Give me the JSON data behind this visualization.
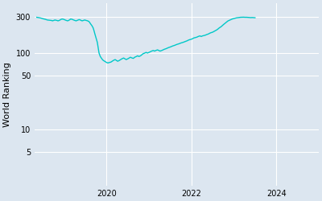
{
  "ylabel": "World Ranking",
  "background_color": "#dce6f0",
  "figure_background": "#dce6f0",
  "line_color": "#00c8c8",
  "line_width": 1.0,
  "yticks": [
    5,
    10,
    50,
    100,
    300
  ],
  "ytick_labels": [
    "5",
    "10",
    "50",
    "100",
    "300"
  ],
  "xticks": [
    2020,
    2022,
    2024
  ],
  "xlim_start": 2018.3,
  "xlim_end": 2025.0,
  "ylim_low": 1.8,
  "ylim_high": 450,
  "data": [
    [
      2018.35,
      295
    ],
    [
      2018.4,
      292
    ],
    [
      2018.45,
      288
    ],
    [
      2018.5,
      282
    ],
    [
      2018.55,
      278
    ],
    [
      2018.6,
      272
    ],
    [
      2018.65,
      270
    ],
    [
      2018.7,
      268
    ],
    [
      2018.72,
      265
    ],
    [
      2018.75,
      268
    ],
    [
      2018.78,
      272
    ],
    [
      2018.8,
      270
    ],
    [
      2018.83,
      268
    ],
    [
      2018.85,
      265
    ],
    [
      2018.88,
      268
    ],
    [
      2018.9,
      272
    ],
    [
      2018.93,
      278
    ],
    [
      2018.95,
      280
    ],
    [
      2018.98,
      278
    ],
    [
      2019.0,
      275
    ],
    [
      2019.02,
      272
    ],
    [
      2019.05,
      268
    ],
    [
      2019.08,
      265
    ],
    [
      2019.1,
      268
    ],
    [
      2019.12,
      272
    ],
    [
      2019.15,
      280
    ],
    [
      2019.18,
      278
    ],
    [
      2019.2,
      275
    ],
    [
      2019.22,
      272
    ],
    [
      2019.25,
      268
    ],
    [
      2019.28,
      265
    ],
    [
      2019.3,
      268
    ],
    [
      2019.33,
      272
    ],
    [
      2019.35,
      275
    ],
    [
      2019.38,
      272
    ],
    [
      2019.4,
      268
    ],
    [
      2019.42,
      265
    ],
    [
      2019.45,
      268
    ],
    [
      2019.48,
      272
    ],
    [
      2019.5,
      270
    ],
    [
      2019.52,
      268
    ],
    [
      2019.55,
      265
    ],
    [
      2019.58,
      260
    ],
    [
      2019.6,
      252
    ],
    [
      2019.62,
      242
    ],
    [
      2019.65,
      230
    ],
    [
      2019.68,
      215
    ],
    [
      2019.7,
      198
    ],
    [
      2019.72,
      180
    ],
    [
      2019.75,
      158
    ],
    [
      2019.78,
      138
    ],
    [
      2019.8,
      118
    ],
    [
      2019.82,
      100
    ],
    [
      2019.85,
      90
    ],
    [
      2019.88,
      85
    ],
    [
      2019.9,
      82
    ],
    [
      2019.92,
      80
    ],
    [
      2019.95,
      78
    ],
    [
      2019.98,
      76
    ],
    [
      2020.0,
      75
    ],
    [
      2020.03,
      74
    ],
    [
      2020.06,
      75
    ],
    [
      2020.1,
      76
    ],
    [
      2020.13,
      78
    ],
    [
      2020.16,
      80
    ],
    [
      2020.2,
      82
    ],
    [
      2020.23,
      80
    ],
    [
      2020.26,
      78
    ],
    [
      2020.3,
      80
    ],
    [
      2020.33,
      82
    ],
    [
      2020.36,
      84
    ],
    [
      2020.4,
      86
    ],
    [
      2020.43,
      84
    ],
    [
      2020.46,
      82
    ],
    [
      2020.5,
      84
    ],
    [
      2020.53,
      86
    ],
    [
      2020.56,
      88
    ],
    [
      2020.6,
      86
    ],
    [
      2020.63,
      85
    ],
    [
      2020.66,
      88
    ],
    [
      2020.7,
      90
    ],
    [
      2020.73,
      92
    ],
    [
      2020.76,
      90
    ],
    [
      2020.8,
      92
    ],
    [
      2020.83,
      95
    ],
    [
      2020.86,
      98
    ],
    [
      2020.9,
      100
    ],
    [
      2020.93,
      102
    ],
    [
      2020.96,
      100
    ],
    [
      2021.0,
      102
    ],
    [
      2021.03,
      104
    ],
    [
      2021.06,
      106
    ],
    [
      2021.1,
      108
    ],
    [
      2021.13,
      106
    ],
    [
      2021.16,
      108
    ],
    [
      2021.2,
      110
    ],
    [
      2021.23,
      108
    ],
    [
      2021.26,
      106
    ],
    [
      2021.3,
      108
    ],
    [
      2021.33,
      110
    ],
    [
      2021.36,
      112
    ],
    [
      2021.4,
      114
    ],
    [
      2021.43,
      116
    ],
    [
      2021.46,
      118
    ],
    [
      2021.5,
      120
    ],
    [
      2021.53,
      122
    ],
    [
      2021.56,
      124
    ],
    [
      2021.6,
      126
    ],
    [
      2021.63,
      128
    ],
    [
      2021.66,
      130
    ],
    [
      2021.7,
      132
    ],
    [
      2021.73,
      134
    ],
    [
      2021.76,
      136
    ],
    [
      2021.8,
      138
    ],
    [
      2021.83,
      140
    ],
    [
      2021.86,
      142
    ],
    [
      2021.9,
      145
    ],
    [
      2021.93,
      148
    ],
    [
      2021.96,
      150
    ],
    [
      2022.0,
      152
    ],
    [
      2022.03,
      155
    ],
    [
      2022.06,
      158
    ],
    [
      2022.1,
      160
    ],
    [
      2022.13,
      162
    ],
    [
      2022.16,
      165
    ],
    [
      2022.2,
      168
    ],
    [
      2022.23,
      165
    ],
    [
      2022.26,
      168
    ],
    [
      2022.3,
      170
    ],
    [
      2022.33,
      172
    ],
    [
      2022.36,
      175
    ],
    [
      2022.4,
      178
    ],
    [
      2022.43,
      182
    ],
    [
      2022.46,
      185
    ],
    [
      2022.5,
      188
    ],
    [
      2022.53,
      192
    ],
    [
      2022.56,
      196
    ],
    [
      2022.6,
      202
    ],
    [
      2022.63,
      208
    ],
    [
      2022.66,
      215
    ],
    [
      2022.7,
      222
    ],
    [
      2022.73,
      230
    ],
    [
      2022.76,
      238
    ],
    [
      2022.8,
      248
    ],
    [
      2022.83,
      256
    ],
    [
      2022.86,
      264
    ],
    [
      2022.9,
      270
    ],
    [
      2022.93,
      275
    ],
    [
      2022.96,
      280
    ],
    [
      2023.0,
      284
    ],
    [
      2023.03,
      287
    ],
    [
      2023.06,
      290
    ],
    [
      2023.1,
      292
    ],
    [
      2023.13,
      294
    ],
    [
      2023.16,
      295
    ],
    [
      2023.2,
      296
    ],
    [
      2023.23,
      296
    ],
    [
      2023.26,
      295
    ],
    [
      2023.3,
      295
    ],
    [
      2023.33,
      294
    ],
    [
      2023.36,
      293
    ],
    [
      2023.4,
      292
    ],
    [
      2023.43,
      293
    ],
    [
      2023.46,
      292
    ],
    [
      2023.5,
      291
    ]
  ]
}
